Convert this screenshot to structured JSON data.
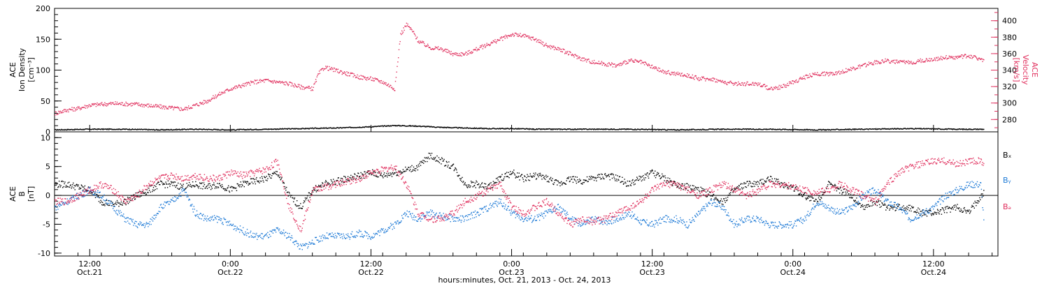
{
  "colors": {
    "density": "#000000",
    "velocity": "#e0305e",
    "bx": "#000000",
    "by": "#1e7ad6",
    "bz": "#e0305e"
  },
  "chart_data": [
    {
      "type": "scatter",
      "panel": "top",
      "ylabel_lines": [
        "ACE",
        "Ion Density",
        "[cm⁻³]"
      ],
      "ylabel2_lines": [
        "ACE",
        "Velocity",
        "[km/s]"
      ],
      "ylim": [
        0,
        200
      ],
      "ylim2": [
        265,
        415
      ],
      "yticks": [
        0,
        50,
        100,
        150,
        200
      ],
      "yticks2": [
        280,
        300,
        320,
        340,
        360,
        380,
        400
      ],
      "xlim": [
        9,
        89.5
      ],
      "series": [
        {
          "color": "density",
          "x": [
            9,
            12,
            15,
            18,
            21,
            24,
            27,
            30,
            33,
            36,
            38,
            40,
            42,
            44,
            46,
            48,
            50,
            54,
            58,
            62,
            66,
            70,
            74,
            78,
            82,
            86,
            88.3
          ],
          "y": [
            4,
            5,
            5,
            4,
            5,
            4,
            5,
            6,
            7,
            9,
            11,
            10,
            8,
            7,
            6,
            6,
            5,
            5,
            5,
            4,
            5,
            5,
            4,
            5,
            6,
            5,
            5
          ]
        },
        {
          "color": "velocity",
          "x": [
            9,
            10,
            11,
            12,
            14,
            16,
            18,
            20,
            21,
            22,
            23,
            24,
            25,
            26,
            27,
            28,
            29,
            30,
            31,
            31.5,
            32,
            33,
            34,
            35,
            36,
            37,
            38,
            38.5,
            39,
            39.5,
            40,
            41,
            42,
            43,
            44,
            45,
            46,
            47,
            48,
            49,
            50,
            51,
            52,
            53,
            54,
            55,
            56,
            57,
            58,
            59,
            60,
            61,
            62,
            63,
            64,
            65,
            66,
            67,
            68,
            69,
            70,
            71,
            72,
            73,
            74,
            75,
            76,
            77,
            78,
            79,
            80,
            81,
            82,
            83,
            84,
            85,
            86,
            87,
            88,
            88.3
          ],
          "y": [
            288,
            292,
            294,
            298,
            300,
            299,
            296,
            293,
            298,
            303,
            311,
            318,
            322,
            326,
            328,
            326,
            324,
            320,
            318,
            336,
            344,
            340,
            336,
            332,
            330,
            326,
            318,
            384,
            396,
            388,
            376,
            368,
            366,
            360,
            360,
            366,
            372,
            378,
            384,
            382,
            378,
            370,
            366,
            360,
            354,
            350,
            348,
            346,
            352,
            350,
            344,
            338,
            336,
            334,
            330,
            330,
            326,
            324,
            324,
            324,
            318,
            320,
            326,
            332,
            336,
            336,
            338,
            342,
            346,
            350,
            352,
            350,
            350,
            352,
            354,
            356,
            356,
            358,
            354,
            352
          ]
        }
      ]
    },
    {
      "type": "scatter",
      "panel": "bottom",
      "ylabel_lines": [
        "ACE",
        "B",
        "[nT]"
      ],
      "ylim": [
        -10.5,
        11
      ],
      "yticks": [
        -10,
        -5,
        0,
        5,
        10
      ],
      "xlim": [
        9,
        89.5
      ],
      "legend": [
        "Bₓ",
        "Bᵧ",
        "Bₔ"
      ],
      "series": [
        {
          "color": "bx",
          "x": [
            9,
            10,
            11,
            12,
            13,
            14,
            15,
            16,
            17,
            18,
            19,
            20,
            21,
            22,
            23,
            24,
            25,
            26,
            27,
            28,
            29,
            30,
            31,
            32,
            33,
            34,
            35,
            36,
            37,
            38,
            39,
            40,
            41,
            42,
            43,
            44,
            45,
            46,
            47,
            48,
            49,
            50,
            51,
            52,
            53,
            54,
            55,
            56,
            57,
            58,
            59,
            60,
            61,
            62,
            63,
            64,
            65,
            66,
            67,
            68,
            69,
            70,
            71,
            72,
            73,
            74,
            75,
            76,
            77,
            78,
            79,
            80,
            81,
            82,
            83,
            84,
            85,
            86,
            87,
            88,
            88.3
          ],
          "y": [
            2,
            2,
            1.5,
            1,
            -1,
            -1.5,
            -1,
            0,
            1,
            2,
            2,
            1.5,
            2,
            1.5,
            2,
            1,
            2,
            2.5,
            3,
            4,
            0,
            -2,
            1,
            2,
            2.5,
            3,
            3.5,
            4,
            3.5,
            4,
            4.5,
            5,
            7,
            6,
            5,
            2,
            2,
            1.5,
            3,
            4,
            3,
            3.5,
            3,
            2,
            3,
            2.5,
            3,
            3.5,
            3,
            2,
            3,
            4,
            3,
            2,
            1.5,
            1,
            0,
            -1,
            1,
            2,
            2,
            3,
            2,
            1.5,
            0,
            -1,
            2,
            1,
            0,
            -2,
            -1,
            -2,
            -2,
            -2,
            -3,
            -3,
            -2.5,
            -2,
            -3,
            0,
            0.5
          ]
        },
        {
          "color": "by",
          "x": [
            9,
            10,
            11,
            12,
            13,
            14,
            15,
            16,
            17,
            18,
            19,
            20,
            21,
            22,
            23,
            24,
            25,
            26,
            27,
            28,
            29,
            30,
            31,
            32,
            33,
            34,
            35,
            36,
            37,
            38,
            39,
            40,
            41,
            42,
            43,
            44,
            45,
            46,
            47,
            48,
            49,
            50,
            51,
            52,
            53,
            54,
            55,
            56,
            57,
            58,
            59,
            60,
            61,
            62,
            63,
            64,
            65,
            66,
            67,
            68,
            69,
            70,
            71,
            72,
            73,
            74,
            75,
            76,
            77,
            78,
            79,
            80,
            81,
            82,
            83,
            84,
            85,
            86,
            87,
            88,
            88.3
          ],
          "y": [
            -2,
            -1,
            0,
            1,
            0,
            -2,
            -4,
            -5,
            -5,
            -2,
            -1,
            1,
            -3,
            -4,
            -4,
            -5,
            -6,
            -7,
            -7,
            -6,
            -7,
            -9,
            -8,
            -7,
            -7,
            -7,
            -6.5,
            -7,
            -6,
            -5,
            -3,
            -4,
            -3,
            -3.5,
            -4,
            -4,
            -3,
            -2,
            -1,
            -3,
            -4,
            -4,
            -3,
            -2,
            -4,
            -5,
            -4,
            -4.5,
            -4,
            -3,
            -4.5,
            -5,
            -4,
            -4,
            -5,
            -3,
            -1,
            -2,
            -5,
            -4,
            -4,
            -5,
            -5,
            -5,
            -4,
            -1,
            -2,
            -3,
            -2,
            0,
            1,
            -1,
            -2,
            -4,
            -3,
            -2,
            0,
            1,
            2,
            2,
            -5
          ]
        },
        {
          "color": "bz",
          "x": [
            9,
            10,
            11,
            12,
            13,
            14,
            15,
            16,
            17,
            18,
            19,
            20,
            21,
            22,
            23,
            24,
            25,
            26,
            27,
            28,
            29,
            30,
            31,
            32,
            33,
            34,
            35,
            36,
            37,
            38,
            39,
            40,
            41,
            42,
            43,
            44,
            45,
            46,
            47,
            48,
            49,
            50,
            51,
            52,
            53,
            54,
            55,
            56,
            57,
            58,
            59,
            60,
            61,
            62,
            63,
            64,
            65,
            66,
            67,
            68,
            69,
            70,
            71,
            72,
            73,
            74,
            75,
            76,
            77,
            78,
            79,
            80,
            81,
            82,
            83,
            84,
            85,
            86,
            87,
            88,
            88.3
          ],
          "y": [
            -1,
            -1,
            0,
            1,
            2,
            1,
            -1,
            0,
            2,
            3,
            3.5,
            3,
            3.5,
            3,
            3,
            4,
            3.5,
            4,
            4.5,
            6,
            -2,
            -6,
            1,
            1.5,
            2,
            2.5,
            3,
            4,
            4.5,
            5,
            2,
            -3,
            -4,
            -4,
            -3,
            -1,
            0,
            1,
            2,
            -2,
            -3,
            -2,
            -1,
            -3,
            -5,
            -4,
            -4.5,
            -4,
            -3,
            -2,
            -1,
            1,
            2,
            2,
            1,
            0,
            1,
            2,
            1,
            0,
            1,
            2,
            2,
            1.5,
            1,
            0.5,
            1,
            2,
            1,
            0,
            -1,
            2,
            4,
            5,
            5.5,
            6,
            6,
            5.5,
            6,
            6,
            5.5
          ]
        }
      ],
      "time_ticks": [
        {
          "x": 12,
          "time": "12:00",
          "date": "Oct.21"
        },
        {
          "x": 24,
          "time": "0:00",
          "date": "Oct.22"
        },
        {
          "x": 36,
          "time": "12:00",
          "date": "Oct.22"
        },
        {
          "x": 48,
          "time": "0:00",
          "date": "Oct.23"
        },
        {
          "x": 60,
          "time": "12:00",
          "date": "Oct.23"
        },
        {
          "x": 72,
          "time": "0:00",
          "date": "Oct.24"
        },
        {
          "x": 84,
          "time": "12:00",
          "date": "Oct.24"
        }
      ],
      "xlabel": "hours:minutes, Oct. 21, 2013 - Oct. 24, 2013"
    }
  ]
}
